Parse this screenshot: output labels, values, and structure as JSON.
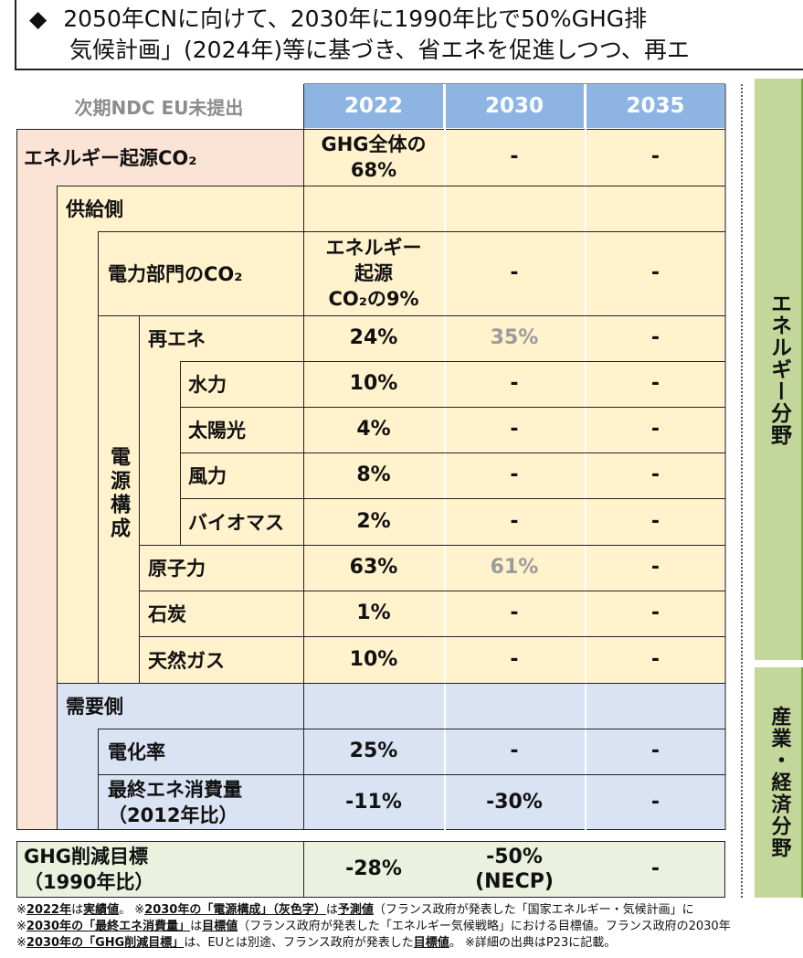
{
  "header": {
    "bullet": "◆",
    "line1": "2050年CNに向けて、2030年に1990年比で50%GHG排",
    "line2": "気候計画」(2024年)等に基づき、省エネを促進しつつ、再エ"
  },
  "table": {
    "corner_label": "次期NDC EU未提出",
    "years": [
      "2022",
      "2030",
      "2035"
    ],
    "rows": [
      {
        "label": "エネルギー起源CO₂",
        "values": [
          "GHG全体の\n68%",
          "-",
          "-"
        ]
      },
      {
        "label": "供給側",
        "values": [
          "",
          "",
          ""
        ]
      },
      {
        "label": "電力部門のCO₂",
        "values": [
          "エネルギー\n起源\nCO₂の9%",
          "-",
          "-"
        ]
      },
      {
        "label": "再エネ",
        "values": [
          "24%",
          "35%",
          "-"
        ]
      },
      {
        "label": "水力",
        "values": [
          "10%",
          "-",
          "-"
        ]
      },
      {
        "label": "太陽光",
        "values": [
          "4%",
          "-",
          "-"
        ]
      },
      {
        "label": "風力",
        "values": [
          "8%",
          "-",
          "-"
        ]
      },
      {
        "label": "バイオマス",
        "values": [
          "2%",
          "-",
          "-"
        ]
      },
      {
        "label": "原子力",
        "values": [
          "63%",
          "61%",
          "-"
        ]
      },
      {
        "label": "石炭",
        "values": [
          "1%",
          "-",
          "-"
        ]
      },
      {
        "label": "天然ガス",
        "values": [
          "10%",
          "-",
          "-"
        ]
      },
      {
        "label": "需要側",
        "values": [
          "",
          "",
          ""
        ]
      },
      {
        "label": "電化率",
        "values": [
          "25%",
          "-",
          "-"
        ]
      },
      {
        "label": "最終エネ消費量\n（2012年比）",
        "values": [
          "-11%",
          "-30%",
          "-"
        ]
      }
    ],
    "power_mix_label": "電源構成",
    "ghg_row": {
      "label": "GHG削減目標\n（1990年比）",
      "values": [
        "-28%",
        "-50%\n(NECP)",
        "-"
      ]
    }
  },
  "side": {
    "energy": "エネルギー分野",
    "industry": "産業・経済分野"
  },
  "footnotes": [
    [
      {
        "t": "※",
        "b": false
      },
      {
        "t": "2022年",
        "b": true
      },
      {
        "t": "は",
        "b": false
      },
      {
        "t": "実績値",
        "b": true
      },
      {
        "t": "。 ※",
        "b": false
      },
      {
        "t": "2030年の「電源構成」（灰色字）",
        "b": true
      },
      {
        "t": "は",
        "b": false
      },
      {
        "t": "予測値",
        "b": true
      },
      {
        "t": "（フランス政府が発表した「国家エネルギー・気候計画」に",
        "b": false
      }
    ],
    [
      {
        "t": "※",
        "b": false
      },
      {
        "t": "2030年の「最終エネ消費量」",
        "b": true
      },
      {
        "t": "は",
        "b": false
      },
      {
        "t": "目標値",
        "b": true
      },
      {
        "t": "（フランス政府が発表した「エネルギー気候戦略」における目標値。フランス政府の2030年",
        "b": false
      }
    ],
    [
      {
        "t": "※",
        "b": false
      },
      {
        "t": "2030年の「GHG削減目標」",
        "b": true
      },
      {
        "t": "は、EUとは別途、フランス政府が発表した",
        "b": false
      },
      {
        "t": "目標値",
        "b": true
      },
      {
        "t": "。 ※詳細の出典はP23に記載。",
        "b": false
      }
    ]
  ],
  "colors": {
    "header_blue": "#8db4e2",
    "energy_pink": "#fbe4d6",
    "supply_yellow": "#fff2cc",
    "demand_blue": "#dae3f3",
    "ghg_green": "#ebf1de",
    "side_green": "#c4d79b",
    "projected_gray": "#9b9b9b"
  }
}
